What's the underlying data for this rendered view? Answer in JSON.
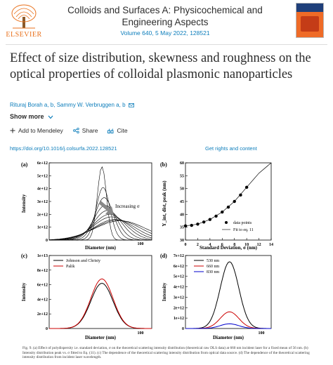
{
  "header": {
    "publisher": "ELSEVIER",
    "journal_line1": "Colloids and Surfaces A: Physicochemical and",
    "journal_line2": "Engineering Aspects",
    "volume": "Volume 640, 5 May 2022, 128521"
  },
  "article": {
    "title": "Effect of size distribution, skewness and roughness on the optical properties of colloidal plasmonic nanoparticles",
    "authors": "Rituraj Borah a, b, Sammy W. Verbruggen a, b",
    "show_more": "Show more",
    "add_mendeley": "Add to Mendeley",
    "share": "Share",
    "cite": "Cite",
    "doi": "https://doi.org/10.1016/j.colsurfa.2022.128521",
    "rights": "Get rights and content"
  },
  "figure": {
    "caption": "Fig. 9. (a) Effect of polydispersity i.e. standard deviation, σ on the theoretical scattering intensity distribution (theoretical raw DLS data) at 660 nm incident laser for a fixed mean of 56 nm. (b) Intensity distribution peak vs. σ fitted to Eq. (11). (c) The dependence of the theoretical scattering intensity distribution from optical data source. (d) The dependence of the theoretical scattering intensity distribution from incident laser wavelength.",
    "panels": {
      "a": {
        "label": "(a)",
        "annotation": "Increasing σ"
      },
      "b": {
        "label": "(b)"
      },
      "c": {
        "label": "(c)"
      },
      "d": {
        "label": "(d)"
      }
    }
  },
  "chart_data": [
    {
      "panel": "a",
      "type": "line",
      "xlabel": "Diameter (nm)",
      "ylabel": "Intensity",
      "yticks": [
        "0",
        "1e+12",
        "2e+12",
        "3e+12",
        "4e+12",
        "5e+12",
        "6e+12"
      ],
      "xticks": [
        "100"
      ],
      "ylim": [
        0,
        6000000000000.0
      ],
      "xscale": "log",
      "annotation": "Increasing σ",
      "series": [
        {
          "peak_x": 56,
          "peak_y": 5700000000000.0
        },
        {
          "peak_x": 57,
          "peak_y": 4100000000000.0
        },
        {
          "peak_x": 58,
          "peak_y": 3300000000000.0
        },
        {
          "peak_x": 59,
          "peak_y": 2700000000000.0
        },
        {
          "peak_x": 61,
          "peak_y": 2300000000000.0
        },
        {
          "peak_x": 63,
          "peak_y": 2000000000000.0
        },
        {
          "peak_x": 65,
          "peak_y": 1800000000000.0
        },
        {
          "peak_x": 68,
          "peak_y": 1600000000000.0
        },
        {
          "peak_x": 71,
          "peak_y": 1550000000000.0
        },
        {
          "peak_x": 74,
          "peak_y": 1500000000000.0
        }
      ]
    },
    {
      "panel": "b",
      "type": "scatter",
      "xlabel": "Standard Deviation, σ (nm)",
      "ylabel": "Y_int, dist, peak (nm)",
      "xlim": [
        0,
        14
      ],
      "ylim": [
        30,
        60
      ],
      "xticks": [
        "0",
        "2",
        "4",
        "6",
        "8",
        "10",
        "12",
        "14"
      ],
      "yticks": [
        "30",
        "35",
        "40",
        "45",
        "50",
        "55",
        "60"
      ],
      "legend": [
        "data points",
        "Fit to eq. 11"
      ],
      "series": [
        {
          "name": "data points",
          "x": [
            0,
            1,
            2,
            3,
            4,
            5,
            6,
            7,
            8,
            9,
            10
          ],
          "y": [
            35.5,
            35.7,
            36.2,
            37.0,
            38.0,
            39.3,
            40.9,
            42.8,
            45.0,
            47.5,
            50.5
          ]
        },
        {
          "name": "Fit to eq. 11",
          "x": [
            0,
            2,
            4,
            6,
            8,
            10,
            12,
            14
          ],
          "y": [
            35.5,
            36.2,
            38.0,
            40.9,
            45.0,
            50.5,
            56.0,
            62.0
          ]
        }
      ]
    },
    {
      "panel": "c",
      "type": "line",
      "xlabel": "Diameter (nm)",
      "ylabel": "Intensity",
      "yticks": [
        "0",
        "2e+12",
        "4e+12",
        "6e+12",
        "8e+12",
        "1e+13"
      ],
      "xticks": [
        "100"
      ],
      "ylim": [
        0,
        10000000000000.0
      ],
      "legend": [
        "Johnson and Christy",
        "Palik"
      ],
      "series": [
        {
          "name": "Johnson and Christy",
          "color": "#000000",
          "peak_x": 56,
          "peak_y": 6200000000000.0
        },
        {
          "name": "Palik",
          "color": "#cc0000",
          "peak_x": 56,
          "peak_y": 6800000000000.0
        }
      ]
    },
    {
      "panel": "d",
      "type": "line",
      "xlabel": "Diameter (nm)",
      "ylabel": "Intensity",
      "yticks": [
        "0",
        "1e+12",
        "2e+12",
        "3e+12",
        "4e+12",
        "5e+12",
        "6e+12",
        "7e+12"
      ],
      "xticks": [
        "100"
      ],
      "ylim": [
        0,
        7000000000000.0
      ],
      "legend": [
        "530 nm",
        "660 nm",
        "830 nm"
      ],
      "series": [
        {
          "name": "530 nm",
          "color": "#000000",
          "peak_x": 56,
          "peak_y": 6400000000000.0
        },
        {
          "name": "660 nm",
          "color": "#cc0000",
          "peak_x": 56,
          "peak_y": 1600000000000.0
        },
        {
          "name": "830 nm",
          "color": "#0000cc",
          "peak_x": 56,
          "peak_y": 450000000000.0
        }
      ]
    }
  ],
  "icons": {
    "add": "plus-icon",
    "share": "share-icon",
    "cite": "quote-icon",
    "expand": "chevron-down-icon",
    "email": "envelope-icon"
  },
  "colors": {
    "link": "#0c7dbb",
    "elsevier_orange": "#e9711c"
  }
}
